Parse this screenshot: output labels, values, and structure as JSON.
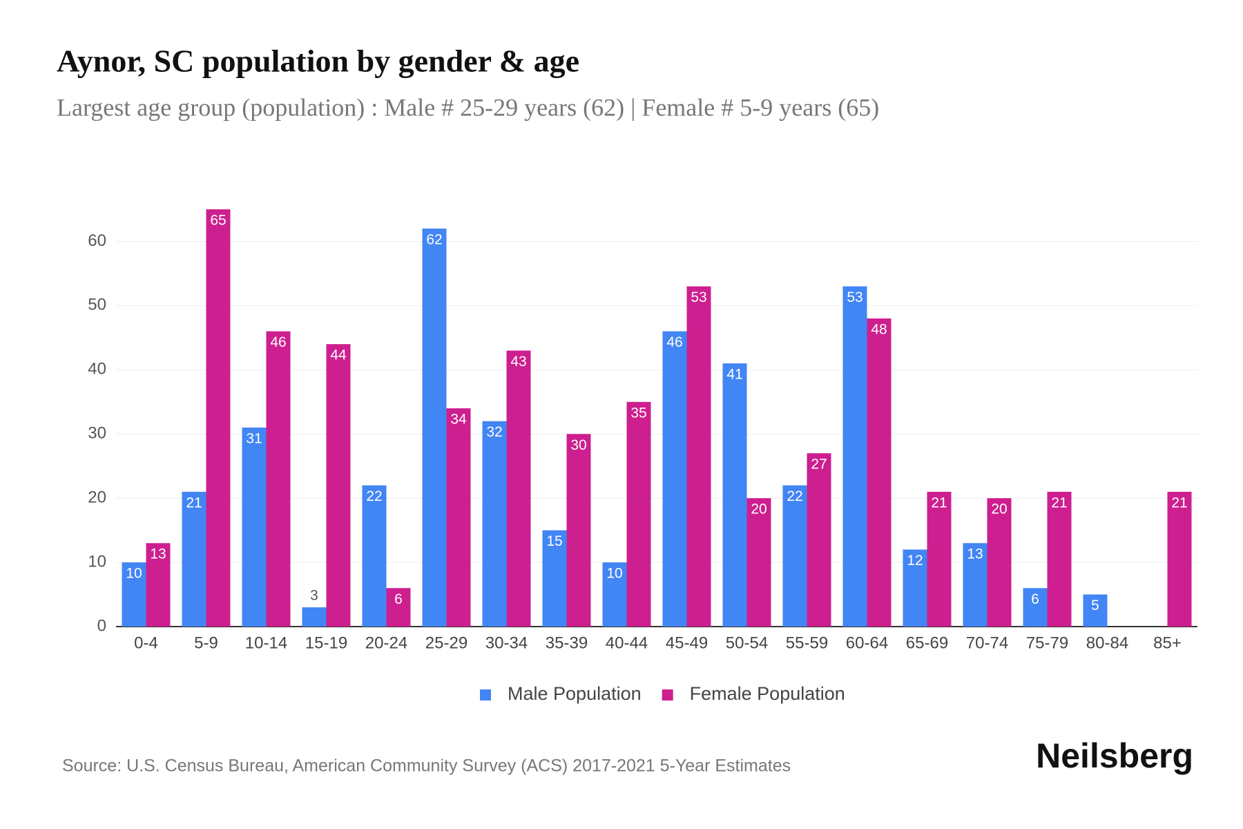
{
  "chart_data": {
    "type": "bar",
    "title": "Aynor, SC population by gender & age",
    "subtitle": "Largest age group (population) : Male # 25-29 years (62) | Female # 5-9 years (65)",
    "source": "Source: U.S. Census Bureau, American Community Survey (ACS) 2017-2021 5-Year Estimates",
    "brand": "Neilsberg",
    "categories": [
      "0-4",
      "5-9",
      "10-14",
      "15-19",
      "20-24",
      "25-29",
      "30-34",
      "35-39",
      "40-44",
      "45-49",
      "50-54",
      "55-59",
      "60-64",
      "65-69",
      "70-74",
      "75-79",
      "80-84",
      "85+"
    ],
    "series": [
      {
        "name": "Male Population",
        "color": "#4285f4",
        "values": [
          10,
          21,
          31,
          3,
          22,
          62,
          32,
          15,
          10,
          46,
          41,
          22,
          53,
          12,
          13,
          6,
          5,
          0
        ]
      },
      {
        "name": "Female Population",
        "color": "#cd1f8f",
        "values": [
          13,
          65,
          46,
          44,
          6,
          34,
          43,
          30,
          35,
          53,
          20,
          27,
          48,
          21,
          20,
          21,
          0,
          21
        ]
      }
    ],
    "ylim": [
      0,
      65
    ],
    "yticks": [
      0,
      10,
      20,
      30,
      40,
      50,
      60
    ],
    "grid": true,
    "legend": "bottom"
  }
}
